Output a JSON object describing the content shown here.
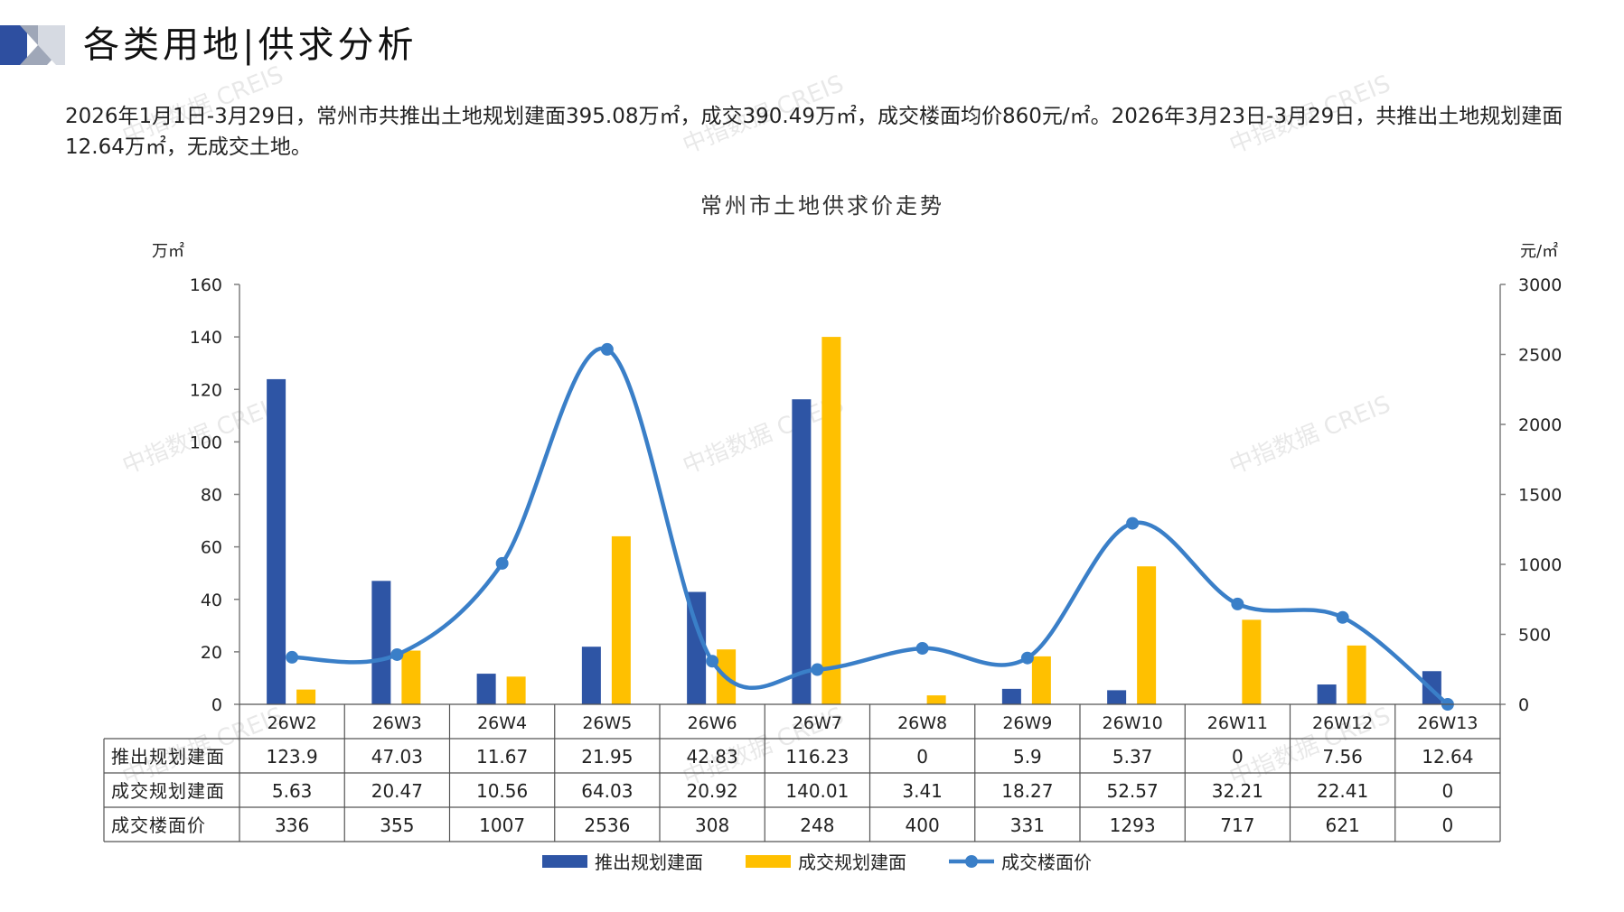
{
  "header": {
    "title": "各类用地|供求分析"
  },
  "summary": "2026年1月1日-3月29日，常州市共推出土地规划建面395.08万㎡，成交390.49万㎡，成交楼面均价860元/㎡。2026年3月23日-3月29日，共推出土地规划建面12.64万㎡，无成交土地。",
  "watermark": "中指数据 CREIS",
  "colors": {
    "supply": "#2E55A5",
    "deal": "#FFC000",
    "price": "#3A7FC8",
    "axis": "#7f7f7f"
  },
  "chart_data": {
    "type": "bar",
    "title": "常州市土地供求价走势",
    "y_left_unit": "万㎡",
    "y_right_unit": "元/㎡",
    "ylim_left": [
      0,
      160
    ],
    "yticks_left": [
      0,
      20,
      40,
      60,
      80,
      100,
      120,
      140,
      160
    ],
    "ylim_right": [
      0,
      3000
    ],
    "yticks_right": [
      0,
      500,
      1000,
      1500,
      2000,
      2500,
      3000
    ],
    "categories": [
      "26W2",
      "26W3",
      "26W4",
      "26W5",
      "26W6",
      "26W7",
      "26W8",
      "26W9",
      "26W10",
      "26W11",
      "26W12",
      "26W13"
    ],
    "series": [
      {
        "name": "推出规划建面",
        "type": "bar",
        "axis": "left",
        "values": [
          123.9,
          47.03,
          11.67,
          21.95,
          42.83,
          116.23,
          0,
          5.9,
          5.37,
          0,
          7.56,
          12.64
        ],
        "labels": [
          "123.9",
          "47.03",
          "11.67",
          "21.95",
          "42.83",
          "116.23",
          "0",
          "5.9",
          "5.37",
          "0",
          "7.56",
          "12.64"
        ]
      },
      {
        "name": "成交规划建面",
        "type": "bar",
        "axis": "left",
        "values": [
          5.63,
          20.47,
          10.56,
          64.03,
          20.92,
          140.01,
          3.41,
          18.27,
          52.57,
          32.21,
          22.41,
          0
        ],
        "labels": [
          "5.63",
          "20.47",
          "10.56",
          "64.03",
          "20.92",
          "140.01",
          "3.41",
          "18.27",
          "52.57",
          "32.21",
          "22.41",
          "0"
        ]
      },
      {
        "name": "成交楼面价",
        "type": "line",
        "axis": "right",
        "values": [
          336,
          355,
          1007,
          2536,
          308,
          248,
          400,
          331,
          1293,
          717,
          621,
          0
        ],
        "labels": [
          "336",
          "355",
          "1007",
          "2536",
          "308",
          "248",
          "400",
          "331",
          "1293",
          "717",
          "621",
          "0"
        ]
      }
    ],
    "legend": "bottom"
  }
}
